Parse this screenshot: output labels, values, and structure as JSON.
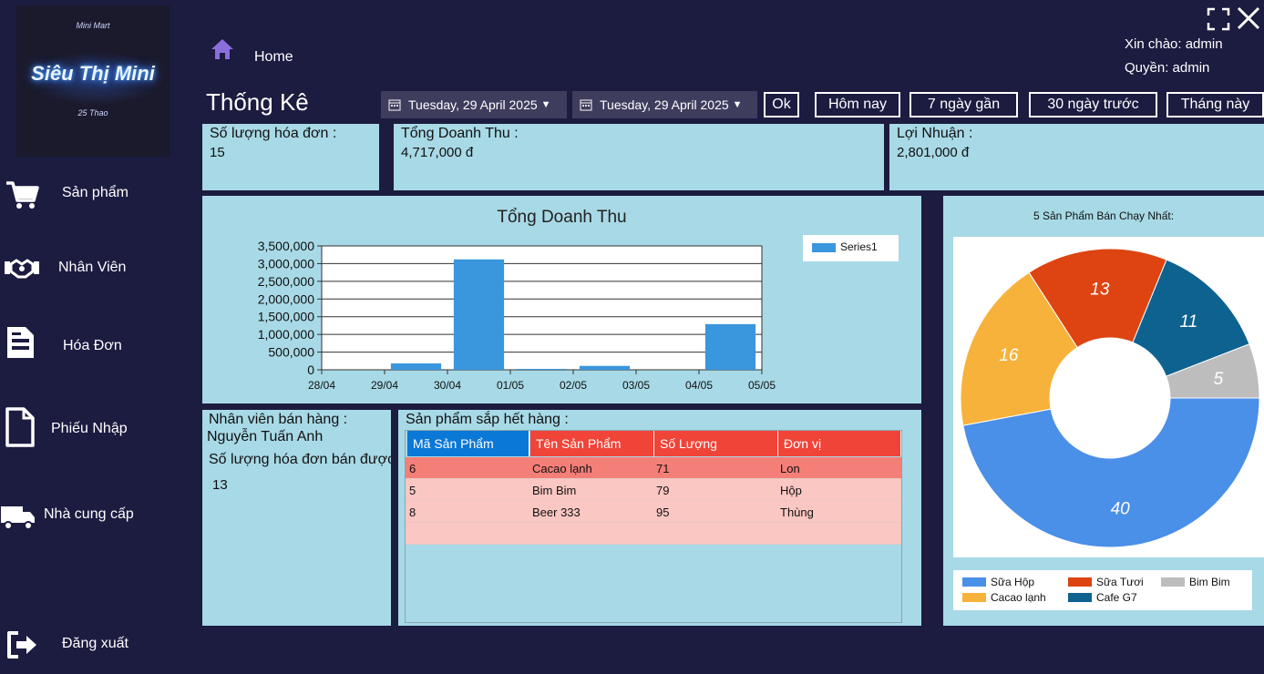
{
  "app": {
    "logo_top": "Mini Mart",
    "logo_name": "Siêu Thị Mini",
    "logo_bottom": "25 Thao"
  },
  "sidebar": {
    "items": [
      {
        "label": "Sản phẩm",
        "icon": "cart-icon"
      },
      {
        "label": "Nhân Viên",
        "icon": "handshake-icon"
      },
      {
        "label": "Hóa Đơn",
        "icon": "invoice-icon"
      },
      {
        "label": "Phiếu Nhập",
        "icon": "document-icon"
      },
      {
        "label": "Nhà cung cấp",
        "icon": "truck-icon"
      },
      {
        "label": "Đăng xuất",
        "icon": "logout-icon"
      }
    ]
  },
  "header": {
    "breadcrumb": "Home",
    "greeting": "Xin chào: admin",
    "role": "Quyền: admin",
    "title": "Thống Kê"
  },
  "filters": {
    "from_date": "Tuesday, 29 April 2025",
    "to_date": "Tuesday, 29 April 2025",
    "ok_label": "Ok",
    "today_label": "Hôm nay",
    "last7_label": "7 ngày gần",
    "last30_label": "30 ngày trước",
    "month_label": "Tháng này"
  },
  "stats": {
    "invoices_label": "Số lượng hóa đơn :",
    "invoices_value": "15",
    "revenue_label": "Tổng Doanh Thu :",
    "revenue_value": "4,717,000 đ",
    "profit_label": "Lợi Nhuận :",
    "profit_value": "2,801,000 đ"
  },
  "chart_data": [
    {
      "type": "bar",
      "title": "Tổng Doanh Thu",
      "categories": [
        "28/04",
        "29/04",
        "30/04",
        "01/05",
        "02/05",
        "03/05",
        "04/05",
        "05/05"
      ],
      "series": [
        {
          "name": "Series1",
          "values": [
            0,
            180000,
            3120000,
            25000,
            110000,
            0,
            1290000,
            0
          ]
        }
      ],
      "y_ticks": [
        "0",
        "500,000",
        "1,000,000",
        "1,500,000",
        "2,000,000",
        "2,500,000",
        "3,000,000",
        "3,500,000"
      ],
      "ylim": [
        0,
        3500000
      ],
      "color": "#3a96dd",
      "grid": true,
      "legend": "top-right"
    },
    {
      "type": "pie",
      "title": "5 Sản Phẩm Bán Chạy Nhất:",
      "donut": true,
      "slices": [
        {
          "name": "Sữa Hộp",
          "value": 40,
          "color": "#4a8fe8"
        },
        {
          "name": "Cacao lạnh",
          "value": 16,
          "color": "#f7b23b"
        },
        {
          "name": "Sữa Tươi",
          "value": 13,
          "color": "#dd4411"
        },
        {
          "name": "Cafe G7",
          "value": 11,
          "color": "#0e6290"
        },
        {
          "name": "Bim Bim",
          "value": 5,
          "color": "#bdbdbd"
        }
      ],
      "legend": "bottom"
    }
  ],
  "employee": {
    "label": "Nhân viên bán hàng :",
    "name": "Nguyễn Tuấn Anh",
    "count_label": "Số lượng hóa đơn bán được",
    "count_value": "13"
  },
  "low_stock": {
    "label": "Sản phẩm sắp hết hàng :",
    "columns": [
      "Mã Sản Phẩm",
      "Tên Sản Phẩm",
      "Số Lượng",
      "Đơn vị"
    ],
    "rows": [
      [
        "6",
        "Cacao lạnh",
        "71",
        "Lon"
      ],
      [
        "5",
        "Bim Bim",
        "79",
        "Hộp"
      ],
      [
        "8",
        "Beer 333",
        "95",
        "Thùng"
      ]
    ]
  }
}
